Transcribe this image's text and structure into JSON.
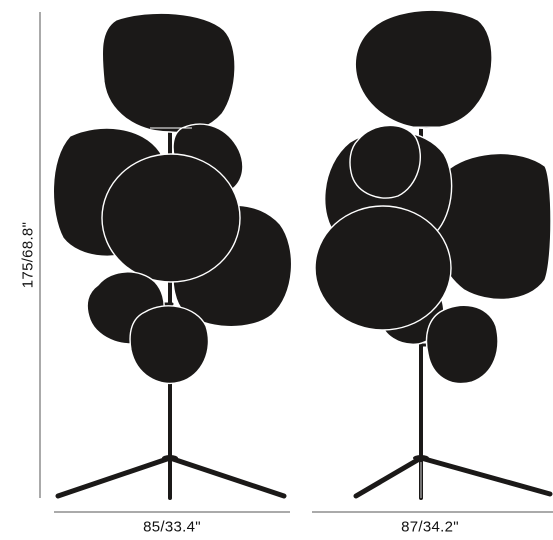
{
  "dimensions": {
    "height": "175/68.8\"",
    "width_front": "85/33.4\"",
    "width_side": "87/34.2\""
  },
  "colors": {
    "shade": "#1b1918",
    "outline": "#ffffff",
    "stand": "#1b1918",
    "dimension_line": "#555555",
    "text": "#111111"
  },
  "views": [
    "front-view",
    "side-view"
  ]
}
